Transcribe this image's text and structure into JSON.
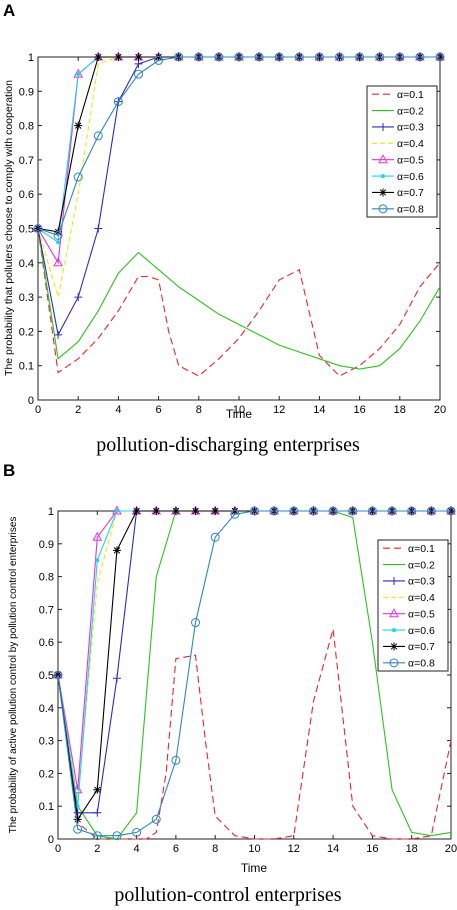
{
  "charts": [
    {
      "panel_label": "A",
      "caption": "pollution-discharging enterprises",
      "chart_data": {
        "type": "line",
        "xlabel": "Time",
        "ylabel": "The probability that polluters choose to comply with cooperation",
        "xlim": [
          0,
          20
        ],
        "ylim": [
          0,
          1
        ],
        "x_ticks": [
          0,
          2,
          4,
          6,
          8,
          10,
          12,
          14,
          16,
          18,
          20
        ],
        "y_ticks": [
          0,
          0.1,
          0.2,
          0.3,
          0.4,
          0.5,
          0.6,
          0.7,
          0.8,
          0.9,
          1
        ],
        "legend_position": "top-right",
        "series": [
          {
            "name": "α=0.1",
            "color": "#e8262d",
            "dash": "7,4",
            "marker": "none",
            "x": [
              0,
              1,
              2,
              3,
              4,
              5,
              5.5,
              6,
              6.5,
              7,
              8,
              9,
              10,
              11,
              12,
              13,
              14,
              15,
              16,
              17,
              18,
              19,
              20
            ],
            "y": [
              0.5,
              0.08,
              0.12,
              0.18,
              0.26,
              0.36,
              0.36,
              0.35,
              0.2,
              0.1,
              0.07,
              0.12,
              0.18,
              0.26,
              0.35,
              0.38,
              0.13,
              0.07,
              0.1,
              0.15,
              0.22,
              0.33,
              0.4
            ]
          },
          {
            "name": "α=0.2",
            "color": "#2fc21f",
            "dash": "",
            "marker": "none",
            "x": [
              0,
              1,
              2,
              3,
              4,
              5,
              6,
              7,
              8,
              9,
              10,
              11,
              12,
              13,
              14,
              15,
              16,
              17,
              18,
              19,
              20
            ],
            "y": [
              0.5,
              0.12,
              0.17,
              0.26,
              0.37,
              0.43,
              0.38,
              0.33,
              0.29,
              0.25,
              0.22,
              0.19,
              0.16,
              0.14,
              0.12,
              0.1,
              0.09,
              0.1,
              0.15,
              0.23,
              0.33
            ]
          },
          {
            "name": "α=0.3",
            "color": "#2b2bbf",
            "dash": "",
            "marker": "plus",
            "x": [
              0,
              1,
              2,
              3,
              4,
              5,
              6,
              7,
              8,
              9,
              10,
              11,
              12,
              13,
              14,
              15,
              16,
              17,
              18,
              19,
              20
            ],
            "y": [
              0.5,
              0.19,
              0.3,
              0.5,
              0.87,
              0.98,
              1,
              1,
              1,
              1,
              1,
              1,
              1,
              1,
              1,
              1,
              1,
              1,
              1,
              1,
              1
            ]
          },
          {
            "name": "α=0.4",
            "color": "#f5e31a",
            "dash": "5,3",
            "marker": "none",
            "x": [
              0,
              1,
              2,
              3,
              4,
              5,
              6,
              7,
              8,
              9,
              10,
              11,
              12,
              13,
              14,
              15,
              16,
              17,
              18,
              19,
              20
            ],
            "y": [
              0.5,
              0.3,
              0.6,
              0.98,
              1,
              1,
              1,
              1,
              1,
              1,
              1,
              1,
              1,
              1,
              1,
              1,
              1,
              1,
              1,
              1,
              1
            ]
          },
          {
            "name": "α=0.5",
            "color": "#e832d8",
            "dash": "",
            "marker": "triangle",
            "x": [
              0,
              1,
              2,
              3,
              4,
              5,
              6,
              7,
              8,
              9,
              10,
              11,
              12,
              13,
              14,
              15,
              16,
              17,
              18,
              19,
              20
            ],
            "y": [
              0.5,
              0.4,
              0.95,
              1,
              1,
              1,
              1,
              1,
              1,
              1,
              1,
              1,
              1,
              1,
              1,
              1,
              1,
              1,
              1,
              1,
              1
            ]
          },
          {
            "name": "α=0.6",
            "color": "#1dd6e8",
            "dash": "",
            "marker": "dot",
            "x": [
              0,
              1,
              2,
              3,
              4,
              5,
              6,
              7,
              8,
              9,
              10,
              11,
              12,
              13,
              14,
              15,
              16,
              17,
              18,
              19,
              20
            ],
            "y": [
              0.5,
              0.46,
              0.95,
              1,
              1,
              1,
              1,
              1,
              1,
              1,
              1,
              1,
              1,
              1,
              1,
              1,
              1,
              1,
              1,
              1,
              1
            ]
          },
          {
            "name": "α=0.7",
            "color": "#000000",
            "dash": "",
            "marker": "star",
            "x": [
              0,
              1,
              2,
              3,
              4,
              5,
              6,
              7,
              8,
              9,
              10,
              11,
              12,
              13,
              14,
              15,
              16,
              17,
              18,
              19,
              20
            ],
            "y": [
              0.5,
              0.49,
              0.8,
              1,
              1,
              1,
              1,
              1,
              1,
              1,
              1,
              1,
              1,
              1,
              1,
              1,
              1,
              1,
              1,
              1,
              1
            ]
          },
          {
            "name": "α=0.8",
            "color": "#2e86c1",
            "dash": "",
            "marker": "circle",
            "x": [
              0,
              1,
              2,
              3,
              4,
              5,
              6,
              7,
              8,
              9,
              10,
              11,
              12,
              13,
              14,
              15,
              16,
              17,
              18,
              19,
              20
            ],
            "y": [
              0.5,
              0.48,
              0.65,
              0.77,
              0.87,
              0.95,
              0.99,
              1,
              1,
              1,
              1,
              1,
              1,
              1,
              1,
              1,
              1,
              1,
              1,
              1,
              1
            ]
          }
        ]
      }
    },
    {
      "panel_label": "B",
      "caption": "pollution-control enterprises",
      "chart_data": {
        "type": "line",
        "xlabel": "Time",
        "ylabel": "The probability of active pollution control by pollution control enterprises",
        "xlim": [
          0,
          20
        ],
        "ylim": [
          0,
          1
        ],
        "x_ticks": [
          0,
          2,
          4,
          6,
          8,
          10,
          12,
          14,
          16,
          18,
          20
        ],
        "y_ticks": [
          0,
          0.1,
          0.2,
          0.3,
          0.4,
          0.5,
          0.6,
          0.7,
          0.8,
          0.9,
          1
        ],
        "legend_position": "top-right",
        "series": [
          {
            "name": "α=0.1",
            "color": "#e8262d",
            "dash": "7,4",
            "marker": "none",
            "x": [
              0,
              1,
              2,
              3,
              4,
              4.5,
              5,
              5.5,
              6,
              7,
              7.5,
              8,
              9,
              10,
              11,
              12,
              13,
              14,
              15,
              16,
              17,
              18,
              19,
              20
            ],
            "y": [
              0.5,
              0.05,
              0,
              0,
              0,
              0,
              0.02,
              0.2,
              0.55,
              0.56,
              0.3,
              0.07,
              0.01,
              0,
              0,
              0.01,
              0.42,
              0.64,
              0.1,
              0.01,
              0,
              0,
              0.01,
              0.3
            ]
          },
          {
            "name": "α=0.2",
            "color": "#2fc21f",
            "dash": "",
            "marker": "none",
            "x": [
              0,
              1,
              2,
              3,
              4,
              5,
              6,
              7,
              8,
              9,
              10,
              11,
              12,
              13,
              14,
              15,
              16,
              17,
              18,
              19,
              20
            ],
            "y": [
              0.5,
              0.1,
              0.01,
              0,
              0.08,
              0.8,
              1,
              1,
              1,
              1,
              1,
              1,
              1,
              1,
              1,
              0.98,
              0.6,
              0.15,
              0.02,
              0.01,
              0.02
            ]
          },
          {
            "name": "α=0.3",
            "color": "#2b2bbf",
            "dash": "",
            "marker": "plus",
            "x": [
              0,
              1,
              2,
              3,
              4,
              5,
              6,
              7,
              8,
              9,
              10,
              11,
              12,
              13,
              14,
              15,
              16,
              17,
              18,
              19,
              20
            ],
            "y": [
              0.5,
              0.08,
              0.08,
              0.49,
              1,
              1,
              1,
              1,
              1,
              1,
              1,
              1,
              1,
              1,
              1,
              1,
              1,
              1,
              1,
              1,
              1
            ]
          },
          {
            "name": "α=0.4",
            "color": "#f5e31a",
            "dash": "5,3",
            "marker": "none",
            "x": [
              0,
              1,
              2,
              3,
              4,
              5,
              6,
              7,
              8,
              9,
              10,
              11,
              12,
              13,
              14,
              15,
              16,
              17,
              18,
              19,
              20
            ],
            "y": [
              0.5,
              0.12,
              0.78,
              1,
              1,
              1,
              1,
              1,
              1,
              1,
              1,
              1,
              1,
              1,
              1,
              1,
              1,
              1,
              1,
              1,
              1
            ]
          },
          {
            "name": "α=0.5",
            "color": "#e832d8",
            "dash": "",
            "marker": "triangle",
            "x": [
              0,
              1,
              2,
              3,
              4,
              5,
              6,
              7,
              8,
              9,
              10,
              11,
              12,
              13,
              14,
              15,
              16,
              17,
              18,
              19,
              20
            ],
            "y": [
              0.5,
              0.15,
              0.92,
              1,
              1,
              1,
              1,
              1,
              1,
              1,
              1,
              1,
              1,
              1,
              1,
              1,
              1,
              1,
              1,
              1,
              1
            ]
          },
          {
            "name": "α=0.6",
            "color": "#1dd6e8",
            "dash": "",
            "marker": "dot",
            "x": [
              0,
              1,
              2,
              3,
              4,
              5,
              6,
              7,
              8,
              9,
              10,
              11,
              12,
              13,
              14,
              15,
              16,
              17,
              18,
              19,
              20
            ],
            "y": [
              0.5,
              0.1,
              0.85,
              1,
              1,
              1,
              1,
              1,
              1,
              1,
              1,
              1,
              1,
              1,
              1,
              1,
              1,
              1,
              1,
              1,
              1
            ]
          },
          {
            "name": "α=0.7",
            "color": "#000000",
            "dash": "",
            "marker": "star",
            "x": [
              0,
              1,
              2,
              3,
              4,
              5,
              6,
              7,
              8,
              9,
              10,
              11,
              12,
              13,
              14,
              15,
              16,
              17,
              18,
              19,
              20
            ],
            "y": [
              0.5,
              0.06,
              0.15,
              0.88,
              1,
              1,
              1,
              1,
              1,
              1,
              1,
              1,
              1,
              1,
              1,
              1,
              1,
              1,
              1,
              1,
              1
            ]
          },
          {
            "name": "α=0.8",
            "color": "#2e86c1",
            "dash": "",
            "marker": "circle",
            "x": [
              0,
              1,
              2,
              3,
              4,
              5,
              6,
              7,
              8,
              9,
              10,
              11,
              12,
              13,
              14,
              15,
              16,
              17,
              18,
              19,
              20
            ],
            "y": [
              0.5,
              0.03,
              0.01,
              0.01,
              0.02,
              0.06,
              0.24,
              0.66,
              0.92,
              0.99,
              1,
              1,
              1,
              1,
              1,
              1,
              1,
              1,
              1,
              1,
              1
            ]
          }
        ]
      }
    }
  ]
}
